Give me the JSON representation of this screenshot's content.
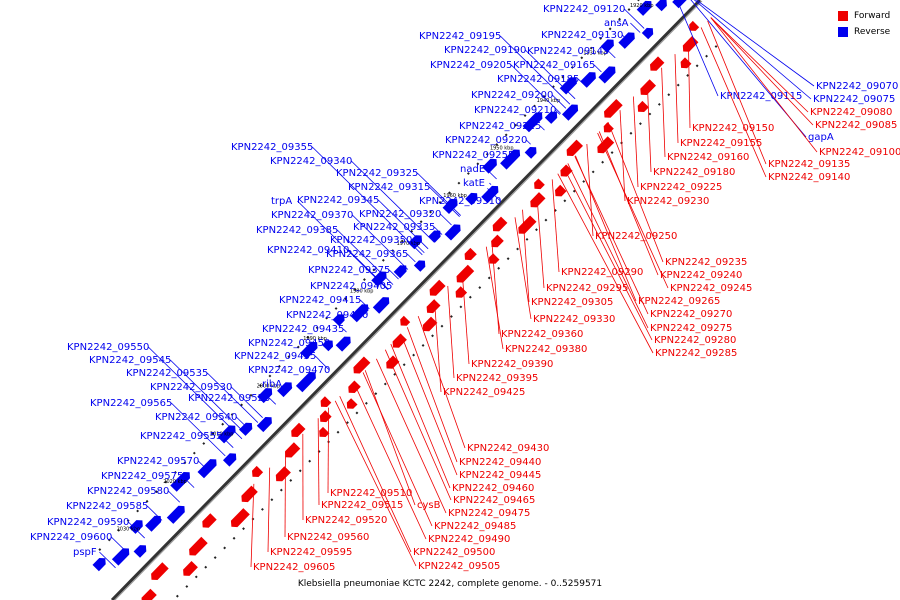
{
  "caption": "Klebsiella pneumoniae KCTC 2242, complete genome. - 0..5259571",
  "legend": [
    {
      "label": "Forward",
      "color": "#ee0000"
    },
    {
      "label": "Reverse",
      "color": "#0000ee"
    }
  ],
  "colors": {
    "forward": "#ee0000",
    "reverse": "#0000ee",
    "backbone": "#555555"
  },
  "ticks": [
    "1920 kbp",
    "1930 kbp",
    "1940 kbp",
    "1950 kbp",
    "1960 kbp",
    "1970 kbp",
    "1980 kbp",
    "1990 kbp",
    "2000 kbp",
    "2010 kbp",
    "2020 kbp",
    "2030 kbp"
  ],
  "reverse_labels": [
    "KPN2242_09120",
    "ansA",
    "KPN2242_09195",
    "KPN2242_09130",
    "KPN2242_09190",
    "KPN2242_09145",
    "KPN2242_09205",
    "KPN2242_09165",
    "KPN2242_09185",
    "KPN2242_09200",
    "KPN2242_09210",
    "KPN2242_09215",
    "KPN2242_09220",
    "KPN2242_09255",
    "nadE",
    "katE",
    "KPN2242_09355",
    "KPN2242_09340",
    "KPN2242_09325",
    "KPN2242_09315",
    "trpA",
    "KPN2242_09345",
    "KPN2242_09310",
    "KPN2242_09370",
    "KPN2242_09320",
    "KPN2242_09385",
    "KPN2242_09335",
    "KPN2242_09350",
    "KPN2242_09410",
    "KPN2242_09365",
    "KPN2242_09375",
    "KPN2242_09405",
    "KPN2242_09415",
    "KPN2242_09420",
    "KPN2242_09435",
    "KPN2242_09550",
    "KPN2242_09450",
    "KPN2242_09545",
    "KPN2242_09455",
    "KPN2242_09535",
    "KPN2242_09470",
    "KPN2242_09530",
    "ribA",
    "KPN2242_09525",
    "KPN2242_09565",
    "KPN2242_09540",
    "KPN2242_09555",
    "KPN2242_09570",
    "KPN2242_09575",
    "KPN2242_09580",
    "KPN2242_09585",
    "KPN2242_09590",
    "KPN2242_09600",
    "pspF",
    "KPN2242_09070",
    "KPN2242_09075",
    "KPN2242_09115",
    "gapA"
  ],
  "forward_labels": [
    "KPN2242_09080",
    "KPN2242_09085",
    "KPN2242_09150",
    "KPN2242_09155",
    "KPN2242_09100",
    "KPN2242_09160",
    "KPN2242_09135",
    "KPN2242_09180",
    "KPN2242_09140",
    "KPN2242_09225",
    "KPN2242_09230",
    "KPN2242_09250",
    "KPN2242_09235",
    "KPN2242_09240",
    "KPN2242_09290",
    "KPN2242_09245",
    "KPN2242_09295",
    "KPN2242_09265",
    "KPN2242_09305",
    "KPN2242_09270",
    "KPN2242_09275",
    "KPN2242_09330",
    "KPN2242_09280",
    "KPN2242_09360",
    "KPN2242_09285",
    "KPN2242_09380",
    "KPN2242_09390",
    "KPN2242_09395",
    "KPN2242_09425",
    "KPN2242_09430",
    "KPN2242_09440",
    "KPN2242_09445",
    "KPN2242_09460",
    "KPN2242_09510",
    "KPN2242_09465",
    "KPN2242_09515",
    "cysB",
    "KPN2242_09475",
    "KPN2242_09520",
    "KPN2242_09485",
    "KPN2242_09490",
    "KPN2242_09560",
    "KPN2242_09500",
    "KPN2242_09595",
    "KPN2242_09505",
    "KPN2242_09605"
  ]
}
